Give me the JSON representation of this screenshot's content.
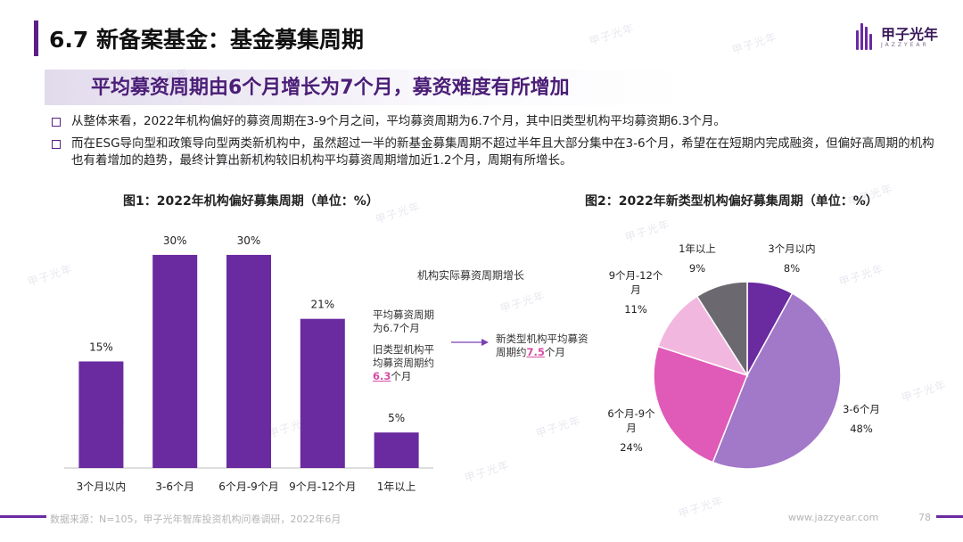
{
  "header": {
    "title": "6.7 新备案基金：基金募集周期",
    "logo_name": "甲子光年",
    "logo_sub": "JAZZYEAR"
  },
  "subtitle": "平均募资周期由6个月增长为7个月，募资难度有所增加",
  "bullets": [
    "从整体来看，2022年机构偏好的募资周期在3-9个月之间，平均募资周期为6.7个月，其中旧类型机构平均募资期6.3个月。",
    "而在ESG导向型和政策导向型两类新机构中，虽然超过一半的新基金募集周期不超过半年且大部分集中在3-6个月，希望在在短期内完成融资，但偏好高周期的机构也有着增加的趋势，最终计算出新机构较旧机构平均募资周期增加近1.2个月，周期有所增长。"
  ],
  "watermark": "甲子光年",
  "notes": {
    "header": "机构实际募资周期增长",
    "avg_line1": "平均募资周期",
    "avg_line2": "为6.7个月",
    "old_line1": "旧类型机构平",
    "old_line2": "均募资周期约",
    "old_value": "6.3",
    "old_unit": "个月",
    "new_line1": "新类型机构平均募资",
    "new_line2_prefix": "周期约",
    "new_value": "7.5",
    "new_unit": "个月"
  },
  "footer": {
    "source": "数据来源：N=105，甲子光年智库投资机构问卷调研，2022年6月",
    "url": "www.jazzyear.com",
    "page": "78"
  },
  "colors": {
    "accent": "#5b1f87",
    "bar": "#6a2aa0",
    "highlight": "#d64ca6"
  },
  "chart_data": [
    {
      "type": "bar",
      "title": "图1：2022年机构偏好募集周期（单位：%）",
      "categories": [
        "3个月以内",
        "3-6个月",
        "6个月-9个月",
        "9个月-12个月",
        "1年以上"
      ],
      "values": [
        15,
        30,
        30,
        21,
        5
      ],
      "value_labels": [
        "15%",
        "30%",
        "30%",
        "21%",
        "5%"
      ],
      "ylim": [
        0,
        32
      ]
    },
    {
      "type": "pie",
      "title": "图2：2022年新类型机构偏好募集周期（单位：%）",
      "slices": [
        {
          "label": "3个月以内",
          "value": 8,
          "pct": "8%",
          "color": "#6a2aa0"
        },
        {
          "label": "3-6个月",
          "value": 48,
          "pct": "48%",
          "color": "#a278c9"
        },
        {
          "label": "6个月-9个月",
          "value": 24,
          "pct": "24%",
          "color": "#e05ab8"
        },
        {
          "label": "9个月-12个月",
          "value": 11,
          "pct": "11%",
          "color": "#f2b7df"
        },
        {
          "label": "1年以上",
          "value": 9,
          "pct": "9%",
          "color": "#6b6870"
        }
      ]
    }
  ]
}
